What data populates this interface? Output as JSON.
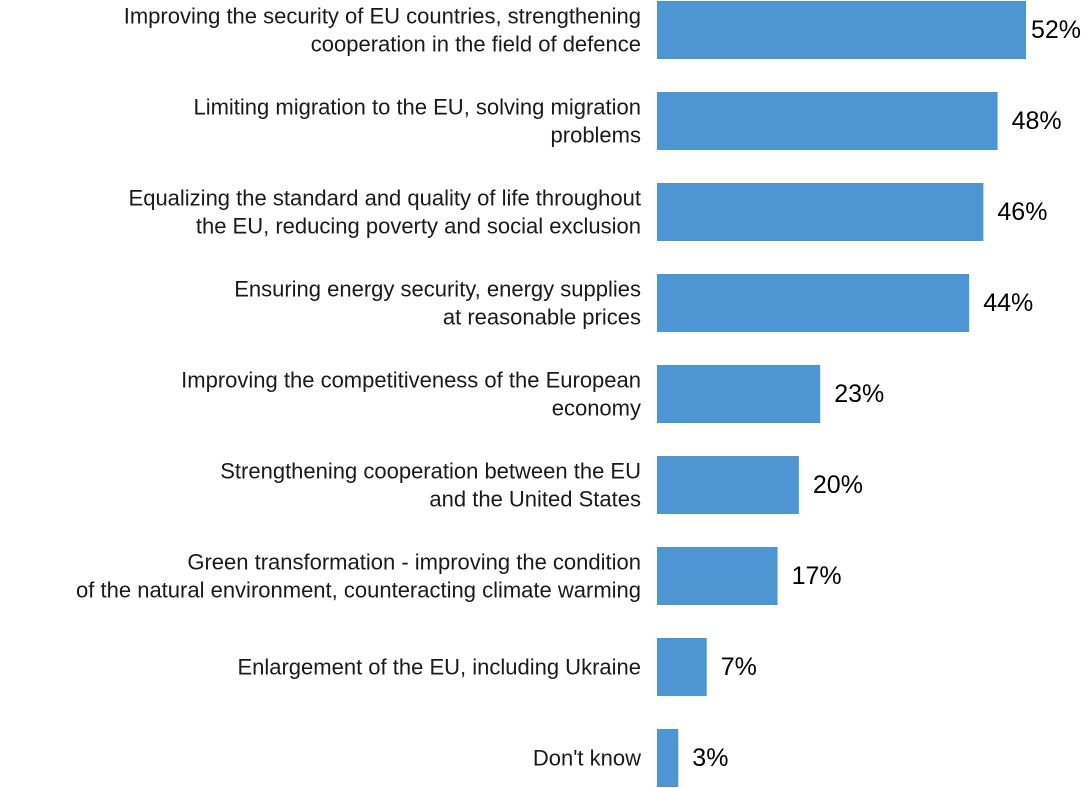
{
  "chart_data": {
    "type": "bar",
    "orientation": "horizontal",
    "title": "",
    "xlabel": "",
    "ylabel": "",
    "xlim": [
      0,
      52
    ],
    "grid": false,
    "legend": "none",
    "bar_color": "#4e96d3",
    "value_suffix": "%",
    "categories": [
      [
        "Improving the security of EU countries, strengthening",
        "cooperation in the field of defence"
      ],
      [
        "Limiting migration to the EU, solving migration",
        "problems"
      ],
      [
        "Equalizing the standard and quality of life throughout",
        "the EU, reducing poverty and social exclusion"
      ],
      [
        "Ensuring energy security, energy supplies",
        "at reasonable prices"
      ],
      [
        "Improving the competitiveness of the European",
        "economy"
      ],
      [
        "Strengthening cooperation between the EU",
        "and the United States"
      ],
      [
        "Green transformation - improving the condition",
        "of the natural environment, counteracting climate warming"
      ],
      [
        "Enlargement of the EU, including Ukraine"
      ],
      [
        "Don't know"
      ]
    ],
    "values": [
      52,
      48,
      46,
      44,
      23,
      20,
      17,
      7,
      3
    ]
  }
}
